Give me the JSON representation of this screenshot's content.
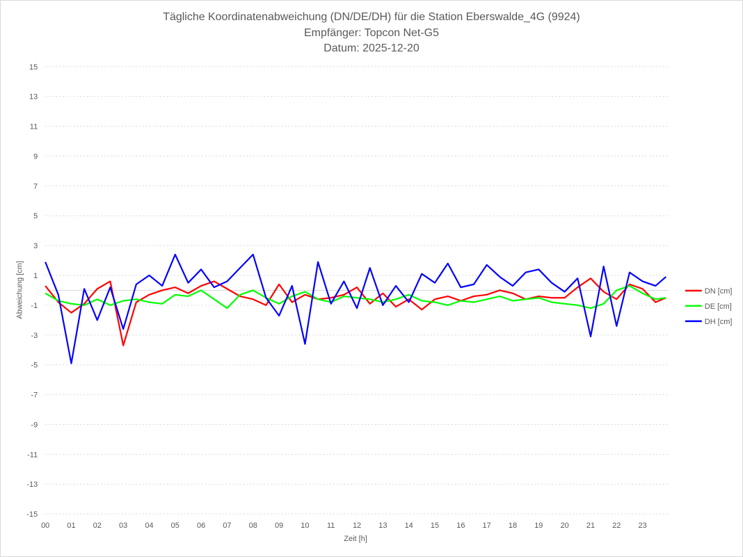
{
  "chart_data": {
    "type": "line",
    "title": [
      "Tägliche Koordinatenabweichung (DN/DE/DH) für die Station Eberswalde_4G (9924)",
      "Empfänger: Topcon Net-G5",
      "Datum: 2025-12-20"
    ],
    "xlabel": "Zeit [h]",
    "ylabel": "Abweichung [cm]",
    "xlim": [
      0,
      24
    ],
    "ylim": [
      -15,
      15
    ],
    "x_ticks": [
      "00",
      "01",
      "02",
      "03",
      "04",
      "05",
      "06",
      "07",
      "08",
      "09",
      "10",
      "11",
      "12",
      "13",
      "14",
      "15",
      "16",
      "17",
      "18",
      "19",
      "20",
      "21",
      "22",
      "23"
    ],
    "y_ticks": [
      15,
      13,
      11,
      9,
      7,
      5,
      3,
      1,
      -1,
      -3,
      -5,
      -7,
      -9,
      -11,
      -13,
      -15
    ],
    "legend_position": "right",
    "x": [
      0,
      0.5,
      1,
      1.5,
      2,
      2.5,
      3,
      3.5,
      4,
      4.5,
      5,
      5.5,
      6,
      6.5,
      7,
      7.5,
      8,
      8.5,
      9,
      9.5,
      10,
      10.5,
      11,
      11.5,
      12,
      12.5,
      13,
      13.5,
      14,
      14.5,
      15,
      15.5,
      16,
      16.5,
      17,
      17.5,
      18,
      18.5,
      19,
      19.5,
      20,
      20.5,
      21,
      21.5,
      22,
      22.5,
      23,
      23.5,
      23.9
    ],
    "series": [
      {
        "name": "DN [cm]",
        "color": "#ff0000",
        "values": [
          0.3,
          -0.8,
          -1.5,
          -0.9,
          0.1,
          0.6,
          -3.7,
          -0.8,
          -0.3,
          0.0,
          0.2,
          -0.2,
          0.3,
          0.6,
          0.1,
          -0.4,
          -0.6,
          -1.0,
          0.4,
          -0.8,
          -0.3,
          -0.6,
          -0.5,
          -0.3,
          0.2,
          -0.9,
          -0.2,
          -1.1,
          -0.6,
          -1.3,
          -0.6,
          -0.4,
          -0.7,
          -0.4,
          -0.3,
          0.0,
          -0.2,
          -0.6,
          -0.4,
          -0.5,
          -0.5,
          0.2,
          0.8,
          -0.1,
          -0.6,
          0.4,
          0.1,
          -0.8,
          -0.5
        ]
      },
      {
        "name": "DE [cm]",
        "color": "#00ff00",
        "values": [
          -0.2,
          -0.7,
          -0.9,
          -1.0,
          -0.6,
          -1.0,
          -0.7,
          -0.6,
          -0.8,
          -0.9,
          -0.3,
          -0.4,
          0.0,
          -0.6,
          -1.2,
          -0.3,
          0.0,
          -0.5,
          -0.9,
          -0.4,
          -0.1,
          -0.6,
          -0.8,
          -0.4,
          -0.5,
          -0.6,
          -0.8,
          -0.6,
          -0.3,
          -0.7,
          -0.8,
          -1.0,
          -0.7,
          -0.8,
          -0.6,
          -0.4,
          -0.7,
          -0.6,
          -0.5,
          -0.8,
          -0.9,
          -1.0,
          -1.2,
          -0.9,
          0.0,
          0.3,
          -0.2,
          -0.6,
          -0.5
        ]
      },
      {
        "name": "DH [cm]",
        "color": "#0000ff",
        "values": [
          1.9,
          -0.3,
          -4.9,
          0.1,
          -2.0,
          0.2,
          -2.6,
          0.4,
          1.0,
          0.3,
          2.4,
          0.5,
          1.4,
          0.2,
          0.6,
          1.5,
          2.4,
          -0.5,
          -1.7,
          0.3,
          -3.6,
          1.9,
          -0.9,
          0.6,
          -1.2,
          1.5,
          -1.0,
          0.3,
          -0.8,
          1.1,
          0.5,
          1.8,
          0.2,
          0.4,
          1.7,
          0.9,
          0.3,
          1.2,
          1.4,
          0.5,
          -0.1,
          0.8,
          -3.1,
          1.6,
          -2.4,
          1.2,
          0.6,
          0.3,
          0.9
        ]
      }
    ]
  }
}
